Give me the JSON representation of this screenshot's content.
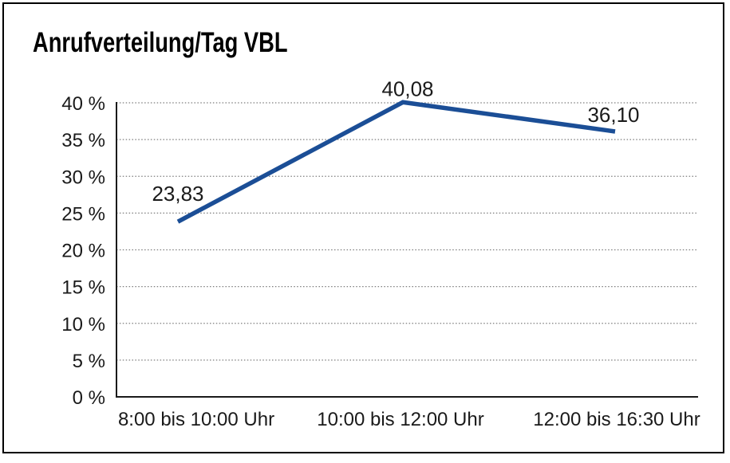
{
  "window": {
    "background": "#ffffff",
    "border_color": "#000000"
  },
  "title": "Anrufverteilung/Tag VBL",
  "chart_data": {
    "type": "line",
    "title": "Anrufverteilung/Tag VBL",
    "categories": [
      "8:00 bis 10:00 Uhr",
      "10:00 bis 12:00 Uhr",
      "12:00 bis 16:30 Uhr"
    ],
    "series": [
      {
        "name": "Anrufverteilung/Tag VBL",
        "values": [
          23.83,
          40.08,
          36.1
        ],
        "point_labels": [
          "23,83",
          "40,08",
          "36,10"
        ]
      }
    ],
    "xlabel": "",
    "ylabel": "",
    "ylim": [
      0,
      40
    ],
    "ytick_step": 5,
    "ytick_labels": [
      "0 %",
      "5 %",
      "10 %",
      "15 %",
      "20 %",
      "25 %",
      "30 %",
      "35 %",
      "40 %"
    ],
    "grid": "horizontal dotted",
    "legend_position": "none",
    "colors": {
      "line": "#1B4E96",
      "grid": "#7d7d7d",
      "axis": "#1a1a1a",
      "text": "#1a1a1a"
    }
  }
}
